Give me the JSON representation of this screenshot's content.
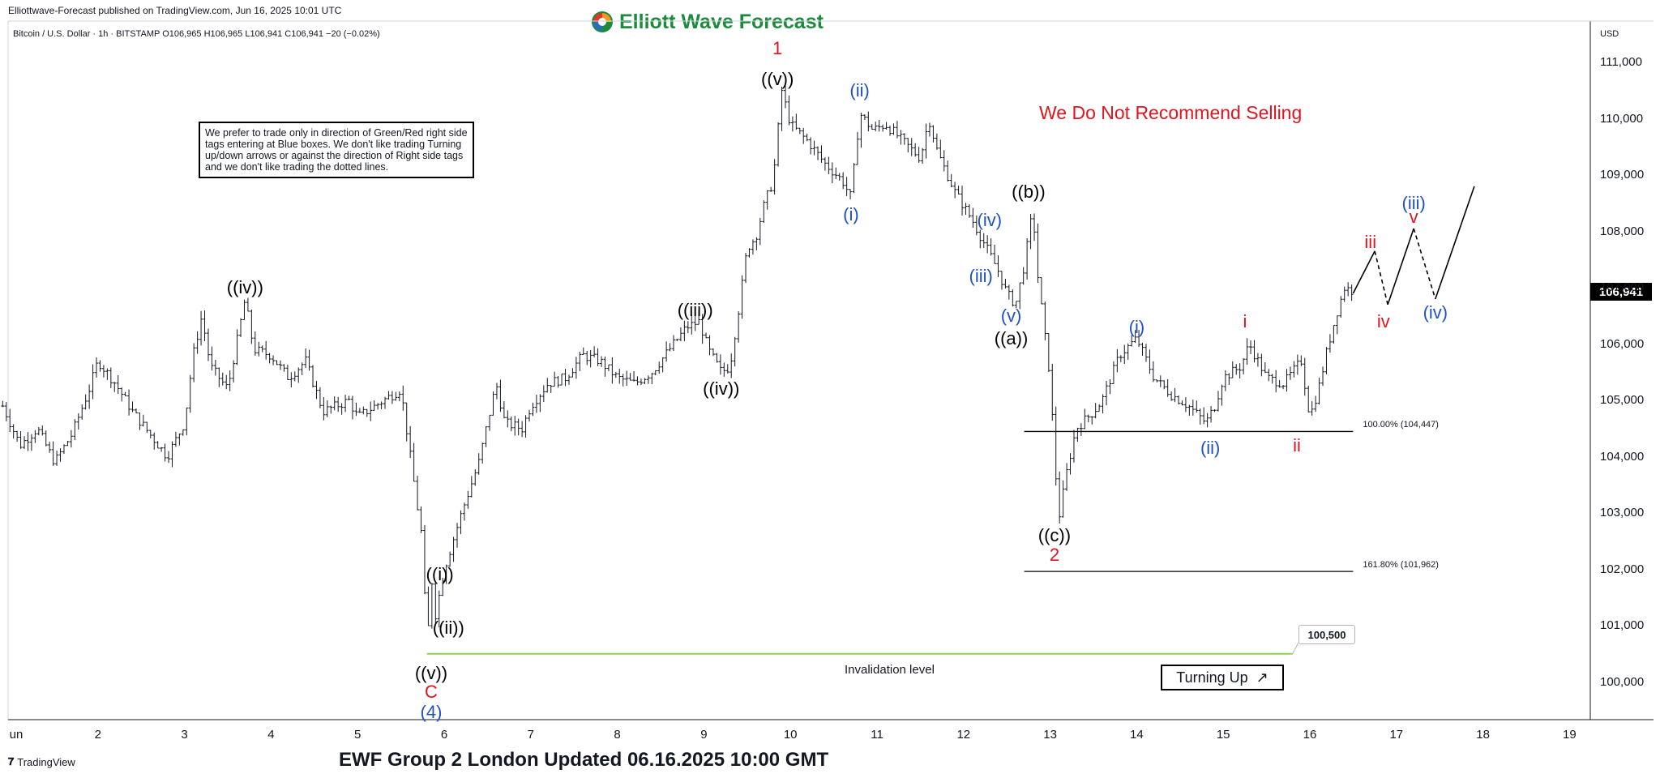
{
  "header": {
    "publisher": "Elliottwave-Forecast published on TradingView.com, Jun 16, 2025 10:01 UTC",
    "logo_text": "Elliott Wave Forecast",
    "symbol_line": "Bitcoin / U.S. Dollar · 1h · BITSTAMP  O106,965  H106,965  L106,941  C106,941  −20 (−0.02%)"
  },
  "note_box": "We prefer to trade only in direction of Green/Red right side tags entering at Blue boxes. We don't like trading Turning up/down arrows or against the direction of Right side tags and we don't like trading the dotted lines.",
  "headline": "We Do Not Recommend Selling",
  "turning": {
    "label": "Turning Up",
    "arrow": "↗"
  },
  "callout": "100,500",
  "invalidation_label": "Invalidation level",
  "footer_title": "EWF Group 2 London Updated 06.16.2025 10:00 GMT",
  "tradingview_logo": "TradingView",
  "colors": {
    "black_label": "#000000",
    "blue_label": "#1e50c8",
    "red_label": "#e0141e",
    "invalidation_line": "#8fd14f",
    "brand_green": "#1c8a3c"
  },
  "chart_data": {
    "type": "candlestick",
    "currency": "USD",
    "ylim": [
      99000,
      111800
    ],
    "y_ticks": [
      "111,000",
      "110,000",
      "109,000",
      "108,000",
      "107,000",
      "106,000",
      "105,000",
      "104,000",
      "103,000",
      "102,000",
      "101,000",
      "100,000"
    ],
    "y_tick_values": [
      111000,
      110000,
      109000,
      108000,
      107000,
      106000,
      105000,
      104000,
      103000,
      102000,
      101000,
      100000
    ],
    "x_ticks": [
      "un",
      "2",
      "3",
      "4",
      "5",
      "6",
      "7",
      "8",
      "9",
      "10",
      "11",
      "12",
      "13",
      "14",
      "15",
      "16",
      "17",
      "18",
      "19"
    ],
    "x_tick_days": [
      1,
      2,
      3,
      4,
      5,
      6,
      7,
      8,
      9,
      10,
      11,
      12,
      13,
      14,
      15,
      16,
      17,
      18,
      19
    ],
    "last_price": "106,941",
    "price_path": [
      [
        0.9,
        104900
      ],
      [
        1.1,
        104200
      ],
      [
        1.3,
        104500
      ],
      [
        1.5,
        103900
      ],
      [
        1.7,
        104400
      ],
      [
        1.9,
        105200
      ],
      [
        2.0,
        105700
      ],
      [
        2.2,
        105300
      ],
      [
        2.4,
        104800
      ],
      [
        2.6,
        104400
      ],
      [
        2.8,
        104000
      ],
      [
        3.0,
        104600
      ],
      [
        3.1,
        105800
      ],
      [
        3.2,
        106500
      ],
      [
        3.3,
        105600
      ],
      [
        3.5,
        105200
      ],
      [
        3.7,
        106800
      ],
      [
        3.8,
        105900
      ],
      [
        4.0,
        105800
      ],
      [
        4.2,
        105400
      ],
      [
        4.4,
        105700
      ],
      [
        4.6,
        104800
      ],
      [
        4.9,
        105000
      ],
      [
        5.0,
        104700
      ],
      [
        5.2,
        104900
      ],
      [
        5.5,
        105200
      ],
      [
        5.6,
        104100
      ],
      [
        5.7,
        103000
      ],
      [
        5.75,
        102500
      ],
      [
        5.8,
        100500
      ],
      [
        5.85,
        101900
      ],
      [
        5.9,
        101200
      ],
      [
        6.0,
        102000
      ],
      [
        6.2,
        103000
      ],
      [
        6.4,
        103900
      ],
      [
        6.6,
        105300
      ],
      [
        6.7,
        104600
      ],
      [
        6.9,
        104500
      ],
      [
        7.0,
        104900
      ],
      [
        7.2,
        105300
      ],
      [
        7.4,
        105400
      ],
      [
        7.6,
        105800
      ],
      [
        7.8,
        105700
      ],
      [
        8.0,
        105400
      ],
      [
        8.2,
        105300
      ],
      [
        8.4,
        105500
      ],
      [
        8.6,
        105900
      ],
      [
        8.8,
        106300
      ],
      [
        8.95,
        106400
      ],
      [
        9.05,
        105900
      ],
      [
        9.2,
        105500
      ],
      [
        9.3,
        105600
      ],
      [
        9.4,
        106600
      ],
      [
        9.5,
        107700
      ],
      [
        9.6,
        107900
      ],
      [
        9.7,
        108500
      ],
      [
        9.8,
        108900
      ],
      [
        9.9,
        110500
      ],
      [
        10.0,
        109900
      ],
      [
        10.2,
        109600
      ],
      [
        10.4,
        109200
      ],
      [
        10.6,
        108900
      ],
      [
        10.7,
        108600
      ],
      [
        10.8,
        110100
      ],
      [
        10.95,
        109800
      ],
      [
        11.1,
        109900
      ],
      [
        11.3,
        109600
      ],
      [
        11.5,
        109300
      ],
      [
        11.6,
        110000
      ],
      [
        11.7,
        109400
      ],
      [
        11.9,
        108700
      ],
      [
        12.1,
        108200
      ],
      [
        12.2,
        107900
      ],
      [
        12.3,
        107600
      ],
      [
        12.4,
        107300
      ],
      [
        12.5,
        106900
      ],
      [
        12.6,
        106700
      ],
      [
        12.7,
        107400
      ],
      [
        12.8,
        108400
      ],
      [
        12.85,
        107300
      ],
      [
        12.95,
        106000
      ],
      [
        13.0,
        105400
      ],
      [
        13.05,
        104000
      ],
      [
        13.1,
        102900
      ],
      [
        13.2,
        103800
      ],
      [
        13.3,
        104500
      ],
      [
        13.5,
        104800
      ],
      [
        13.6,
        105000
      ],
      [
        13.8,
        105800
      ],
      [
        14.0,
        106100
      ],
      [
        14.2,
        105400
      ],
      [
        14.4,
        105100
      ],
      [
        14.6,
        104900
      ],
      [
        14.8,
        104600
      ],
      [
        14.9,
        104900
      ],
      [
        15.0,
        105400
      ],
      [
        15.2,
        105600
      ],
      [
        15.3,
        106000
      ],
      [
        15.5,
        105400
      ],
      [
        15.7,
        105300
      ],
      [
        15.9,
        105700
      ],
      [
        16.0,
        104700
      ],
      [
        16.1,
        105200
      ],
      [
        16.2,
        105900
      ],
      [
        16.3,
        106500
      ],
      [
        16.4,
        107000
      ],
      [
        16.5,
        106941
      ]
    ],
    "projection": [
      [
        16.5,
        106900
      ],
      [
        16.75,
        107650
      ],
      [
        16.9,
        106700
      ],
      [
        17.2,
        108050
      ],
      [
        17.45,
        106800
      ],
      [
        17.9,
        108800
      ]
    ],
    "projection_dashed_segments": [
      1,
      3
    ],
    "levels": [
      {
        "label": "100.00% (104,447)",
        "value": 104447,
        "x_start": 12.7,
        "x_end": 16.5
      },
      {
        "label": "161.80% (101,962)",
        "value": 101962,
        "x_start": 12.7,
        "x_end": 16.5
      }
    ],
    "invalidation_line": {
      "value": 100500,
      "x_start": 5.8,
      "x_end": 15.8
    },
    "wave_labels": [
      {
        "text": "((iv))",
        "day": 3.7,
        "price": 107000,
        "color": "black"
      },
      {
        "text": "((i))",
        "day": 5.95,
        "price": 101900,
        "color": "black"
      },
      {
        "text": "((ii))",
        "day": 6.05,
        "price": 100950,
        "color": "black"
      },
      {
        "text": "((v))",
        "day": 5.85,
        "price": 100150,
        "color": "black"
      },
      {
        "text": "C",
        "day": 5.85,
        "price": 99820,
        "color": "red"
      },
      {
        "text": "(4)",
        "day": 5.85,
        "price": 99460,
        "color": "blue"
      },
      {
        "text": "((iii))",
        "day": 8.9,
        "price": 106600,
        "color": "black"
      },
      {
        "text": "((iv))",
        "day": 9.2,
        "price": 105200,
        "color": "black"
      },
      {
        "text": "1",
        "day": 9.85,
        "price": 111250,
        "color": "red"
      },
      {
        "text": "((v))",
        "day": 9.85,
        "price": 110700,
        "color": "black"
      },
      {
        "text": "(i)",
        "day": 10.7,
        "price": 108300,
        "color": "blue"
      },
      {
        "text": "(ii)",
        "day": 10.8,
        "price": 110500,
        "color": "blue"
      },
      {
        "text": "(iv)",
        "day": 12.3,
        "price": 108200,
        "color": "blue"
      },
      {
        "text": "(iii)",
        "day": 12.2,
        "price": 107200,
        "color": "blue"
      },
      {
        "text": "(v)",
        "day": 12.55,
        "price": 106500,
        "color": "blue"
      },
      {
        "text": "((a))",
        "day": 12.55,
        "price": 106100,
        "color": "black"
      },
      {
        "text": "((b))",
        "day": 12.75,
        "price": 108700,
        "color": "black"
      },
      {
        "text": "((c))",
        "day": 13.05,
        "price": 102600,
        "color": "black"
      },
      {
        "text": "2",
        "day": 13.05,
        "price": 102250,
        "color": "red"
      },
      {
        "text": "(i)",
        "day": 14.0,
        "price": 106300,
        "color": "blue"
      },
      {
        "text": "(ii)",
        "day": 14.85,
        "price": 104150,
        "color": "blue"
      },
      {
        "text": "i",
        "day": 15.25,
        "price": 106400,
        "color": "red"
      },
      {
        "text": "ii",
        "day": 15.85,
        "price": 104200,
        "color": "red"
      },
      {
        "text": "iii",
        "day": 16.7,
        "price": 107800,
        "color": "red"
      },
      {
        "text": "iv",
        "day": 16.85,
        "price": 106400,
        "color": "red"
      },
      {
        "text": "v",
        "day": 17.2,
        "price": 108250,
        "color": "red"
      },
      {
        "text": "(iii)",
        "day": 17.2,
        "price": 108500,
        "color": "blue"
      },
      {
        "text": "(iv)",
        "day": 17.45,
        "price": 106550,
        "color": "blue"
      }
    ]
  }
}
